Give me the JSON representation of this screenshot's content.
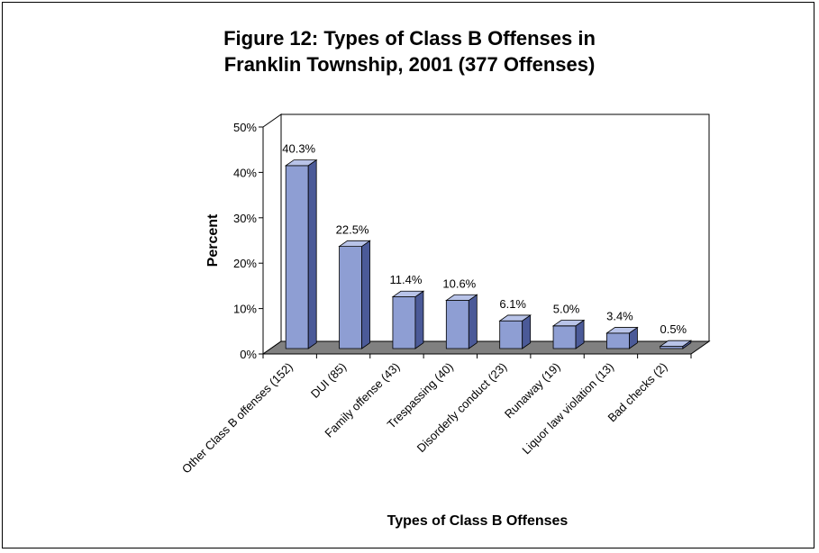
{
  "chart_data": {
    "type": "bar",
    "title_lines": [
      "Figure 12:  Types of Class B Offenses in",
      "Franklin Township, 2001 (377 Offenses)"
    ],
    "xlabel": "Types of Class B Offenses",
    "ylabel": "Percent",
    "ylim": [
      0,
      50
    ],
    "ytick_values": [
      0,
      10,
      20,
      30,
      40,
      50
    ],
    "ytick_labels": [
      "0%",
      "10%",
      "20%",
      "30%",
      "40%",
      "50%"
    ],
    "categories": [
      "Other Class B offenses (152)",
      "DUI (85)",
      "Family offense (43)",
      "Trespassing (40)",
      "Disorderly conduct (23)",
      "Runaway (19)",
      "Liquor law violation (13)",
      "Bad checks (2)"
    ],
    "values": [
      40.3,
      22.5,
      11.4,
      10.6,
      6.1,
      5.0,
      3.4,
      0.5
    ],
    "data_labels": [
      "40.3%",
      "22.5%",
      "11.4%",
      "10.6%",
      "6.1%",
      "5.0%",
      "3.4%",
      "0.5%"
    ],
    "colors": {
      "bar_front": "#8e9ed3",
      "bar_side": "#4b5a98",
      "bar_top": "#b8c3e8",
      "floor": "#808080"
    },
    "grid": false,
    "legend": "none"
  }
}
